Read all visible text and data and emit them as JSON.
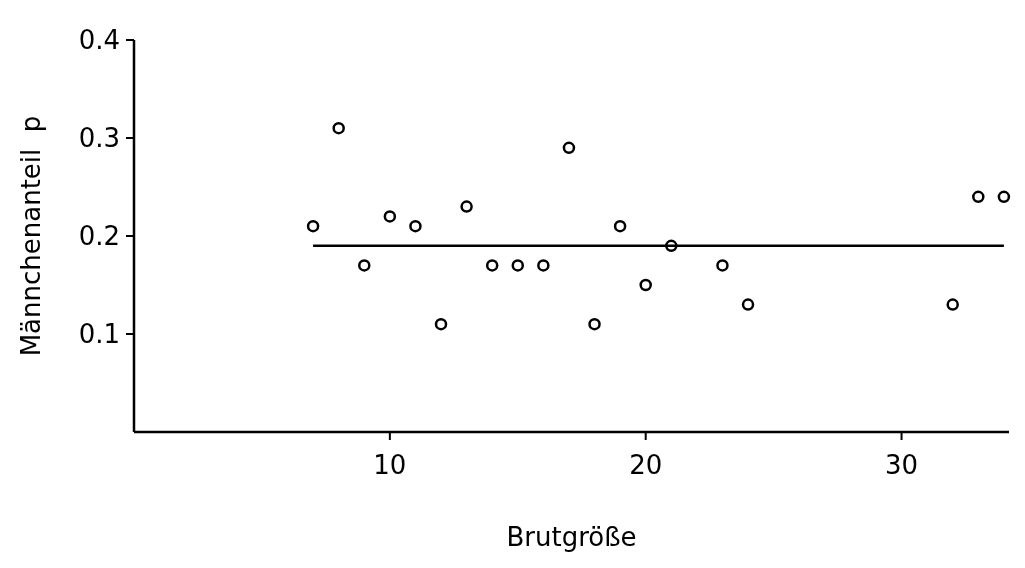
{
  "chart_data": {
    "type": "scatter",
    "xlabel": "Brutgröße",
    "ylabel": "Männchenanteil  p",
    "xlim": [
      0,
      34.2
    ],
    "ylim": [
      0,
      0.4
    ],
    "xticks": [
      10,
      20,
      30
    ],
    "yticks": [
      0.1,
      0.2,
      0.3,
      0.4
    ],
    "marker": "circle",
    "grid": false,
    "series": [
      {
        "color": "#000000",
        "x": [
          7,
          8,
          9,
          10,
          11,
          12,
          13,
          14,
          15,
          16,
          17,
          18,
          19,
          20,
          21,
          23,
          24,
          32,
          33,
          34
        ],
        "values": [
          0.21,
          0.31,
          0.17,
          0.22,
          0.21,
          0.11,
          0.23,
          0.17,
          0.17,
          0.17,
          0.29,
          0.11,
          0.21,
          0.15,
          0.19,
          0.17,
          0.13,
          0.13,
          0.24,
          0.24
        ]
      },
      {
        "type": "line",
        "color": "#000000",
        "x": [
          7,
          34
        ],
        "values": [
          0.19,
          0.19
        ],
        "marker": "none",
        "line_style": "solid"
      }
    ]
  }
}
